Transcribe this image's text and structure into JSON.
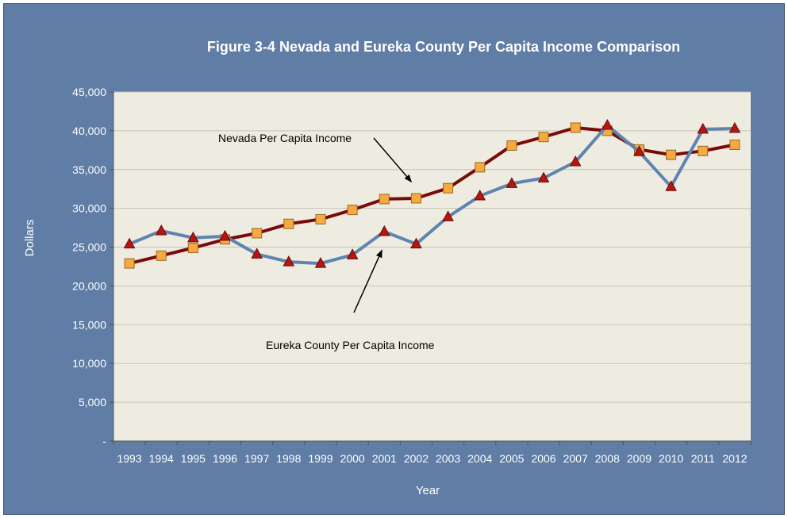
{
  "chart_data": {
    "type": "line",
    "title": "Figure 3-4 Nevada and Eureka County Per Capita Income Comparison",
    "xlabel": "Year",
    "ylabel": "Dollars",
    "categories": [
      "1993",
      "1994",
      "1995",
      "1996",
      "1997",
      "1998",
      "1999",
      "2000",
      "2001",
      "2002",
      "2003",
      "2004",
      "2005",
      "2006",
      "2007",
      "2008",
      "2009",
      "2010",
      "2011",
      "2012"
    ],
    "ylim": [
      0,
      45000
    ],
    "yticks": [
      0,
      5000,
      10000,
      15000,
      20000,
      25000,
      30000,
      35000,
      40000,
      45000
    ],
    "ytick_labels": [
      "-",
      "5,000",
      "10,000",
      "15,000",
      "20,000",
      "25,000",
      "30,000",
      "35,000",
      "40,000",
      "45,000"
    ],
    "grid": true,
    "legend": "none",
    "series": [
      {
        "marker": "square",
        "line_color": "#7a0a0a",
        "marker_color": "#f5a940",
        "values": [
          22900,
          23900,
          24900,
          26000,
          26800,
          28000,
          28600,
          29800,
          31200,
          31300,
          32600,
          35300,
          38100,
          39200,
          40400,
          40000,
          37600,
          36900,
          37400,
          38200
        ]
      },
      {
        "marker": "triangle",
        "line_color": "#5f84b0",
        "marker_color": "#b8150f",
        "values": [
          25400,
          27100,
          26200,
          26400,
          24100,
          23100,
          22900,
          24000,
          27000,
          25400,
          28900,
          31600,
          33200,
          33900,
          36000,
          40700,
          37300,
          32800,
          40200,
          40300
        ]
      }
    ],
    "annotations": [
      {
        "text": "Nevada Per Capita Income",
        "points_to": {
          "x": "2002",
          "y": 32700
        }
      },
      {
        "text": "Eureka County Per Capita Income",
        "points_to": {
          "x": "2001",
          "y": 24300
        }
      }
    ]
  }
}
